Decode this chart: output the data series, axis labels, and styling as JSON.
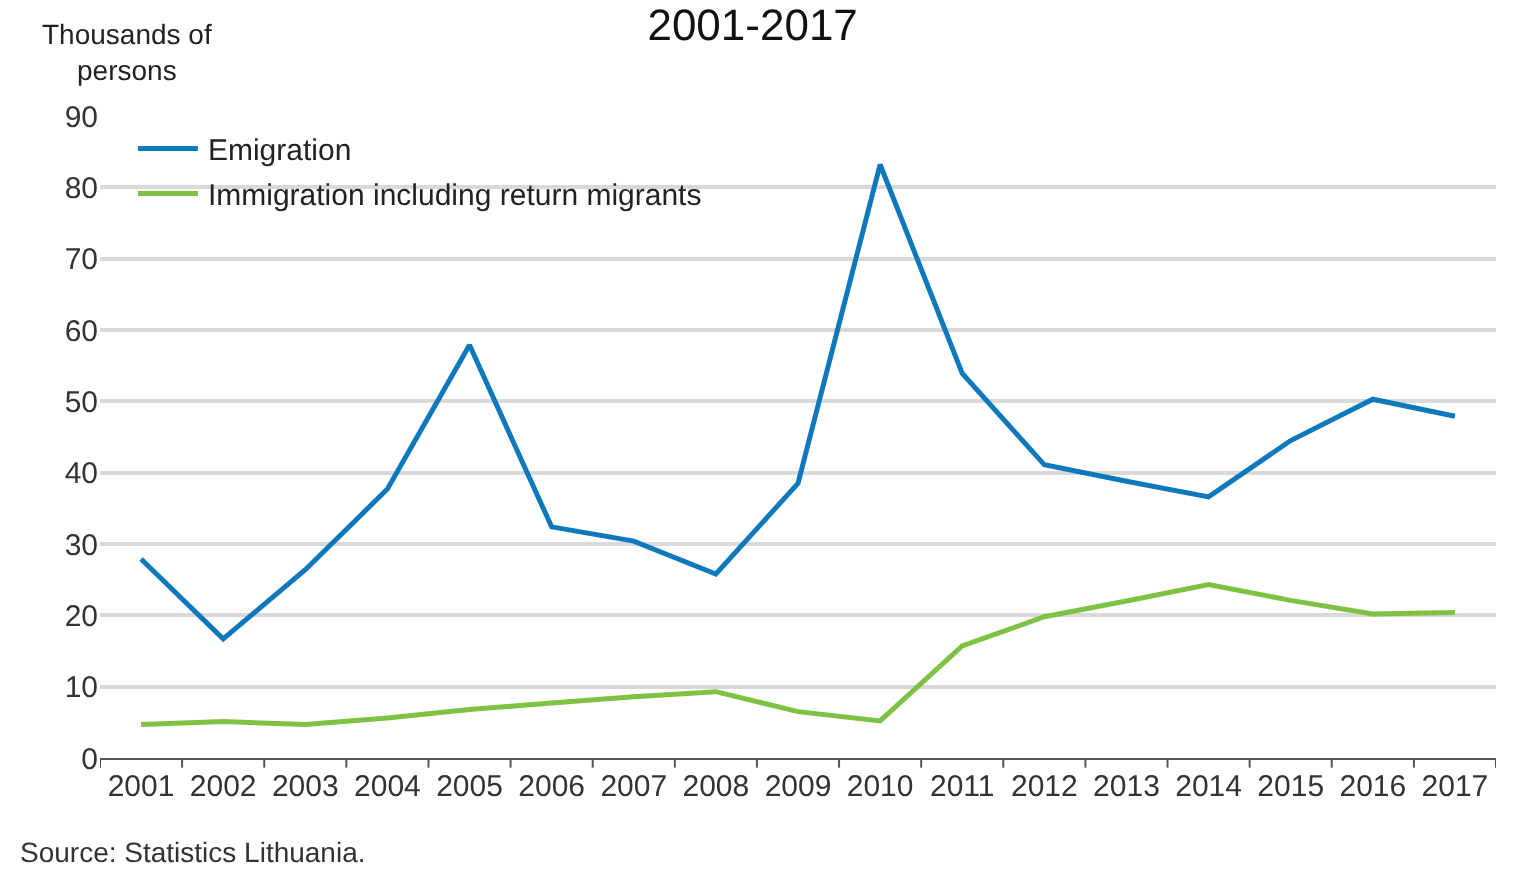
{
  "chart_data": {
    "type": "line",
    "title": "2001-2017",
    "ylabel": "Thousands of\npersons",
    "categories": [
      "2001",
      "2002",
      "2003",
      "2004",
      "2005",
      "2006",
      "2007",
      "2008",
      "2009",
      "2010",
      "2011",
      "2012",
      "2013",
      "2014",
      "2015",
      "2016",
      "2017"
    ],
    "series": [
      {
        "name": "Emigration",
        "color": "#0e78bd",
        "values": [
          27.9,
          16.7,
          26.4,
          37.7,
          57.9,
          32.4,
          30.4,
          25.8,
          38.5,
          83.2,
          53.9,
          41.1,
          38.8,
          36.6,
          44.5,
          50.3,
          47.9
        ]
      },
      {
        "name": "Immigration including return migrants",
        "color": "#7dc242",
        "values": [
          4.7,
          5.1,
          4.7,
          5.6,
          6.8,
          7.7,
          8.6,
          9.3,
          6.5,
          5.2,
          15.7,
          19.8,
          22.0,
          24.3,
          22.1,
          20.2,
          20.4
        ]
      }
    ],
    "ylim": [
      0,
      90
    ],
    "yticks": [
      0,
      10,
      20,
      30,
      40,
      50,
      60,
      70,
      80,
      90
    ],
    "grid": "y",
    "legend": "top left",
    "marker": "none",
    "line_style": "solid",
    "annotations": [
      "Source: Statistics Lithuania."
    ]
  }
}
